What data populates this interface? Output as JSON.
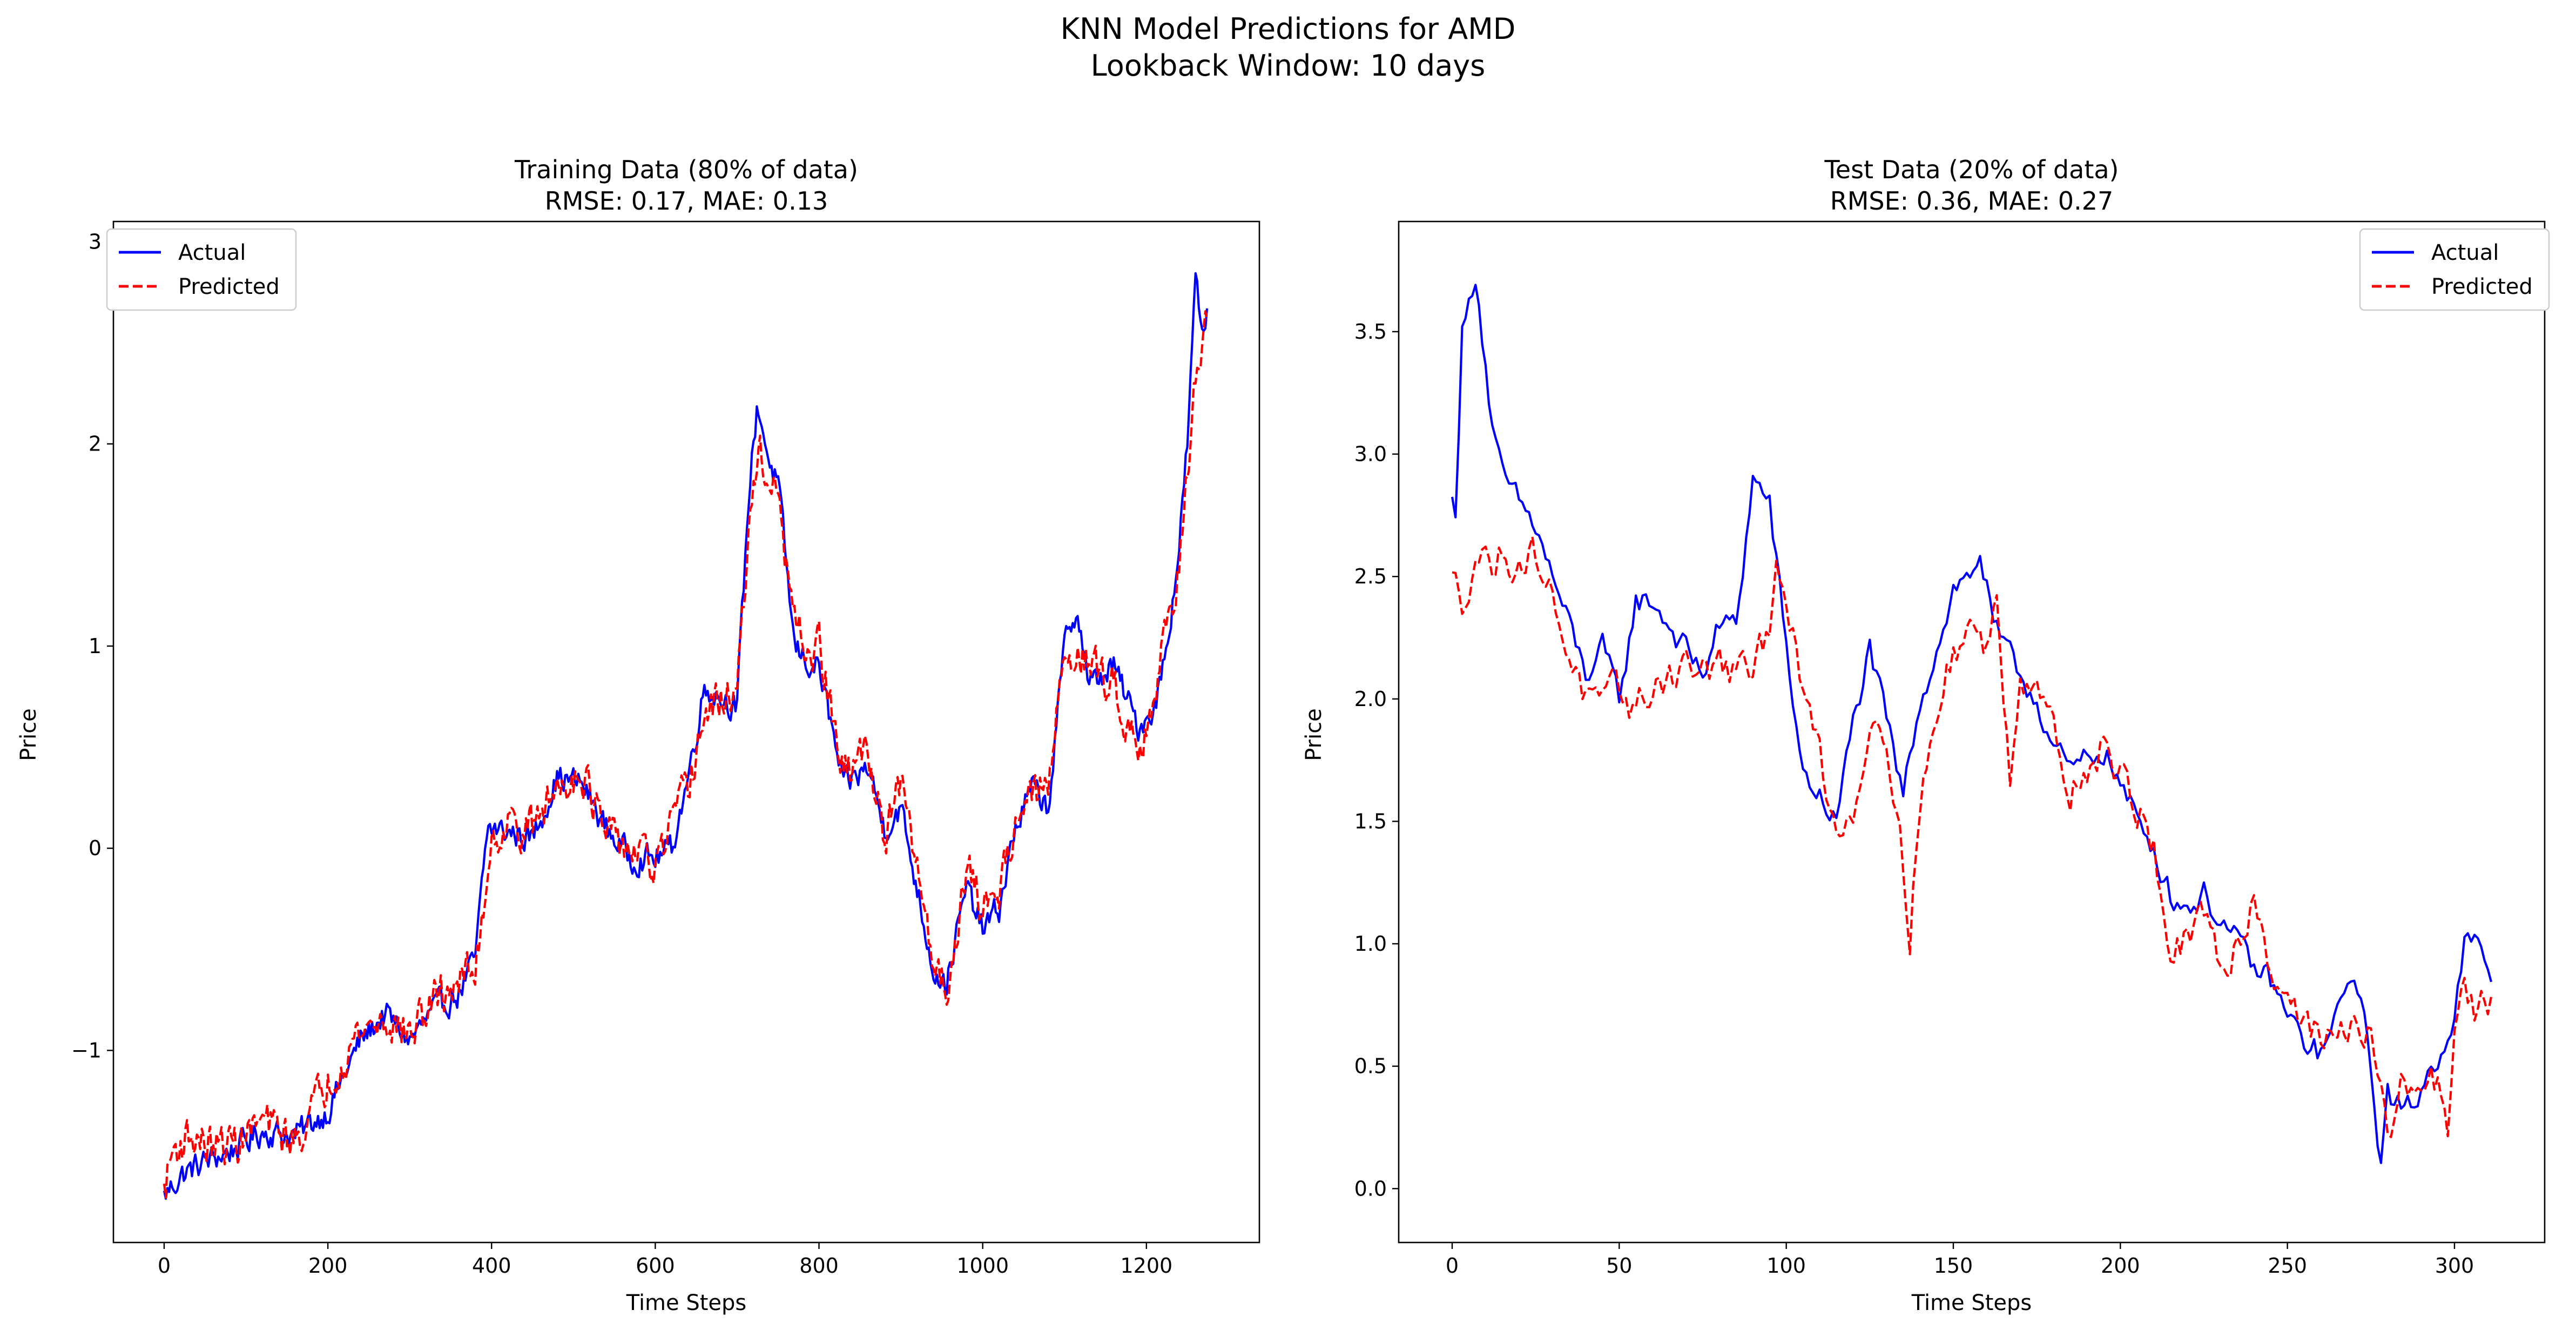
{
  "figure": {
    "suptitle_line1": "KNN Model Predictions for AMD",
    "suptitle_line2": "Lookback Window: 10 days"
  },
  "colors": {
    "actual": "#0000ff",
    "predicted": "#ff0000"
  },
  "chart_data": [
    {
      "type": "line",
      "title_line1": "Training Data (80% of data)",
      "title_line2": "RMSE: 0.17, MAE: 0.13",
      "xlabel": "Time Steps",
      "ylabel": "Price",
      "xlim": [
        -62,
        1338
      ],
      "ylim": [
        -1.95,
        3.1
      ],
      "xticks": [
        0,
        200,
        400,
        600,
        800,
        1000,
        1200
      ],
      "xtick_labels": [
        "0",
        "200",
        "400",
        "600",
        "800",
        "1000",
        "1200"
      ],
      "yticks": [
        -1,
        0,
        1,
        2,
        3
      ],
      "ytick_labels": [
        "−1",
        "0",
        "1",
        "2",
        "3"
      ],
      "legend_position": "upper left",
      "grid": false,
      "x_end": 1275,
      "series": [
        {
          "name": "Actual",
          "style": "solid",
          "keypoints": [
            [
              0,
              -1.72
            ],
            [
              20,
              -1.62
            ],
            [
              50,
              -1.55
            ],
            [
              80,
              -1.5
            ],
            [
              120,
              -1.4
            ],
            [
              160,
              -1.42
            ],
            [
              200,
              -1.3
            ],
            [
              240,
              -0.95
            ],
            [
              270,
              -0.82
            ],
            [
              300,
              -0.95
            ],
            [
              330,
              -0.8
            ],
            [
              360,
              -0.72
            ],
            [
              380,
              -0.55
            ],
            [
              395,
              0.1
            ],
            [
              420,
              0.08
            ],
            [
              450,
              0.05
            ],
            [
              480,
              0.35
            ],
            [
              510,
              0.32
            ],
            [
              540,
              0.1
            ],
            [
              570,
              -0.05
            ],
            [
              600,
              -0.05
            ],
            [
              620,
              0.0
            ],
            [
              640,
              0.35
            ],
            [
              660,
              0.8
            ],
            [
              700,
              0.7
            ],
            [
              715,
              1.8
            ],
            [
              725,
              2.2
            ],
            [
              740,
              1.9
            ],
            [
              750,
              1.8
            ],
            [
              770,
              1.0
            ],
            [
              790,
              0.9
            ],
            [
              800,
              0.9
            ],
            [
              830,
              0.3
            ],
            [
              860,
              0.4
            ],
            [
              880,
              0.1
            ],
            [
              900,
              0.2
            ],
            [
              920,
              -0.2
            ],
            [
              940,
              -0.6
            ],
            [
              955,
              -0.68
            ],
            [
              980,
              -0.2
            ],
            [
              1000,
              -0.4
            ],
            [
              1020,
              -0.3
            ],
            [
              1040,
              0.1
            ],
            [
              1060,
              0.3
            ],
            [
              1080,
              0.2
            ],
            [
              1100,
              1.0
            ],
            [
              1115,
              1.2
            ],
            [
              1130,
              0.8
            ],
            [
              1160,
              0.9
            ],
            [
              1190,
              0.6
            ],
            [
              1210,
              0.7
            ],
            [
              1225,
              1.0
            ],
            [
              1240,
              1.5
            ],
            [
              1250,
              2.0
            ],
            [
              1260,
              2.8
            ],
            [
              1268,
              2.55
            ],
            [
              1275,
              2.65
            ]
          ],
          "noise": 0.06
        },
        {
          "name": "Predicted",
          "style": "dashed",
          "keypoints": [
            [
              0,
              -1.7
            ],
            [
              10,
              -1.5
            ],
            [
              30,
              -1.42
            ],
            [
              60,
              -1.48
            ],
            [
              90,
              -1.45
            ],
            [
              120,
              -1.35
            ],
            [
              160,
              -1.45
            ],
            [
              200,
              -1.15
            ],
            [
              240,
              -0.9
            ],
            [
              270,
              -0.85
            ],
            [
              300,
              -0.92
            ],
            [
              330,
              -0.75
            ],
            [
              360,
              -0.65
            ],
            [
              380,
              -0.6
            ],
            [
              400,
              0.05
            ],
            [
              420,
              0.12
            ],
            [
              450,
              0.1
            ],
            [
              480,
              0.3
            ],
            [
              510,
              0.4
            ],
            [
              540,
              0.05
            ],
            [
              570,
              0.0
            ],
            [
              600,
              -0.1
            ],
            [
              620,
              0.1
            ],
            [
              640,
              0.3
            ],
            [
              660,
              0.65
            ],
            [
              700,
              0.8
            ],
            [
              715,
              1.55
            ],
            [
              725,
              2.0
            ],
            [
              740,
              1.8
            ],
            [
              750,
              1.7
            ],
            [
              770,
              1.1
            ],
            [
              790,
              0.95
            ],
            [
              800,
              1.0
            ],
            [
              830,
              0.35
            ],
            [
              860,
              0.5
            ],
            [
              880,
              0.05
            ],
            [
              900,
              0.3
            ],
            [
              920,
              -0.1
            ],
            [
              940,
              -0.55
            ],
            [
              955,
              -0.72
            ],
            [
              980,
              -0.1
            ],
            [
              1000,
              -0.3
            ],
            [
              1020,
              -0.2
            ],
            [
              1040,
              0.15
            ],
            [
              1060,
              0.25
            ],
            [
              1080,
              0.3
            ],
            [
              1100,
              0.95
            ],
            [
              1115,
              1.0
            ],
            [
              1130,
              0.9
            ],
            [
              1160,
              0.8
            ],
            [
              1190,
              0.5
            ],
            [
              1210,
              0.75
            ],
            [
              1225,
              1.1
            ],
            [
              1240,
              1.4
            ],
            [
              1250,
              1.9
            ],
            [
              1260,
              2.3
            ],
            [
              1268,
              2.4
            ],
            [
              1275,
              2.6
            ]
          ],
          "noise": 0.09
        }
      ]
    },
    {
      "type": "line",
      "title_line1": "Test Data (20% of data)",
      "title_line2": "RMSE: 0.36, MAE: 0.27",
      "xlabel": "Time Steps",
      "ylabel": "Price",
      "xlim": [
        -16,
        327
      ],
      "ylim": [
        -0.22,
        3.95
      ],
      "xticks": [
        0,
        50,
        100,
        150,
        200,
        250,
        300
      ],
      "xtick_labels": [
        "0",
        "50",
        "100",
        "150",
        "200",
        "250",
        "300"
      ],
      "yticks": [
        0.0,
        0.5,
        1.0,
        1.5,
        2.0,
        2.5,
        3.0,
        3.5
      ],
      "ytick_labels": [
        "0.0",
        "0.5",
        "1.0",
        "1.5",
        "2.0",
        "2.5",
        "3.0",
        "3.5"
      ],
      "legend_position": "upper right",
      "grid": false,
      "x_end": 311,
      "series": [
        {
          "name": "Actual",
          "style": "solid",
          "keypoints": [
            [
              0,
              2.8
            ],
            [
              1,
              2.78
            ],
            [
              3,
              3.5
            ],
            [
              5,
              3.6
            ],
            [
              7,
              3.75
            ],
            [
              9,
              3.5
            ],
            [
              12,
              3.1
            ],
            [
              15,
              2.9
            ],
            [
              20,
              2.8
            ],
            [
              25,
              2.7
            ],
            [
              30,
              2.5
            ],
            [
              35,
              2.3
            ],
            [
              40,
              2.1
            ],
            [
              45,
              2.2
            ],
            [
              50,
              2.0
            ],
            [
              55,
              2.4
            ],
            [
              60,
              2.4
            ],
            [
              65,
              2.3
            ],
            [
              70,
              2.2
            ],
            [
              75,
              2.1
            ],
            [
              80,
              2.3
            ],
            [
              85,
              2.3
            ],
            [
              90,
              2.9
            ],
            [
              95,
              2.8
            ],
            [
              100,
              2.2
            ],
            [
              105,
              1.7
            ],
            [
              110,
              1.6
            ],
            [
              115,
              1.5
            ],
            [
              120,
              1.9
            ],
            [
              125,
              2.2
            ],
            [
              130,
              1.9
            ],
            [
              135,
              1.6
            ],
            [
              140,
              2.0
            ],
            [
              145,
              2.2
            ],
            [
              150,
              2.45
            ],
            [
              155,
              2.5
            ],
            [
              158,
              2.6
            ],
            [
              162,
              2.3
            ],
            [
              165,
              2.2
            ],
            [
              170,
              2.1
            ],
            [
              175,
              2.0
            ],
            [
              180,
              1.8
            ],
            [
              185,
              1.7
            ],
            [
              190,
              1.75
            ],
            [
              195,
              1.8
            ],
            [
              200,
              1.65
            ],
            [
              205,
              1.5
            ],
            [
              210,
              1.4
            ],
            [
              215,
              1.2
            ],
            [
              220,
              1.15
            ],
            [
              225,
              1.2
            ],
            [
              230,
              1.1
            ],
            [
              235,
              1.0
            ],
            [
              240,
              0.9
            ],
            [
              245,
              0.85
            ],
            [
              250,
              0.7
            ],
            [
              255,
              0.6
            ],
            [
              260,
              0.55
            ],
            [
              265,
              0.7
            ],
            [
              270,
              0.9
            ],
            [
              275,
              0.5
            ],
            [
              278,
              0.1
            ],
            [
              280,
              0.4
            ],
            [
              285,
              0.3
            ],
            [
              290,
              0.4
            ],
            [
              295,
              0.55
            ],
            [
              300,
              0.7
            ],
            [
              303,
              1.0
            ],
            [
              306,
              1.0
            ],
            [
              311,
              0.87
            ]
          ],
          "noise": 0.05
        },
        {
          "name": "Predicted",
          "style": "dashed",
          "keypoints": [
            [
              0,
              2.48
            ],
            [
              3,
              2.4
            ],
            [
              7,
              2.6
            ],
            [
              12,
              2.55
            ],
            [
              16,
              2.6
            ],
            [
              20,
              2.55
            ],
            [
              25,
              2.6
            ],
            [
              30,
              2.4
            ],
            [
              35,
              2.2
            ],
            [
              40,
              2.0
            ],
            [
              45,
              1.95
            ],
            [
              50,
              2.05
            ],
            [
              55,
              1.95
            ],
            [
              60,
              2.05
            ],
            [
              65,
              2.1
            ],
            [
              70,
              2.15
            ],
            [
              75,
              2.1
            ],
            [
              80,
              2.15
            ],
            [
              85,
              2.1
            ],
            [
              90,
              2.1
            ],
            [
              95,
              2.3
            ],
            [
              97,
              2.65
            ],
            [
              100,
              2.4
            ],
            [
              105,
              2.0
            ],
            [
              110,
              1.8
            ],
            [
              115,
              1.45
            ],
            [
              120,
              1.55
            ],
            [
              125,
              1.9
            ],
            [
              130,
              1.9
            ],
            [
              135,
              1.3
            ],
            [
              137,
              1.05
            ],
            [
              140,
              1.6
            ],
            [
              145,
              1.9
            ],
            [
              150,
              2.2
            ],
            [
              155,
              2.3
            ],
            [
              160,
              2.2
            ],
            [
              163,
              2.4
            ],
            [
              167,
              1.7
            ],
            [
              170,
              2.1
            ],
            [
              175,
              2.1
            ],
            [
              180,
              1.85
            ],
            [
              185,
              1.65
            ],
            [
              190,
              1.7
            ],
            [
              195,
              1.8
            ],
            [
              200,
              1.7
            ],
            [
              205,
              1.55
            ],
            [
              210,
              1.4
            ],
            [
              215,
              0.95
            ],
            [
              220,
              1.0
            ],
            [
              225,
              1.1
            ],
            [
              230,
              0.9
            ],
            [
              235,
              1.0
            ],
            [
              240,
              1.2
            ],
            [
              245,
              0.9
            ],
            [
              250,
              0.8
            ],
            [
              255,
              0.7
            ],
            [
              260,
              0.6
            ],
            [
              265,
              0.6
            ],
            [
              270,
              0.7
            ],
            [
              275,
              0.6
            ],
            [
              280,
              0.2
            ],
            [
              285,
              0.45
            ],
            [
              290,
              0.4
            ],
            [
              295,
              0.45
            ],
            [
              298,
              0.25
            ],
            [
              300,
              0.7
            ],
            [
              303,
              0.8
            ],
            [
              306,
              0.7
            ],
            [
              311,
              0.78
            ]
          ],
          "noise": 0.07
        }
      ]
    }
  ]
}
